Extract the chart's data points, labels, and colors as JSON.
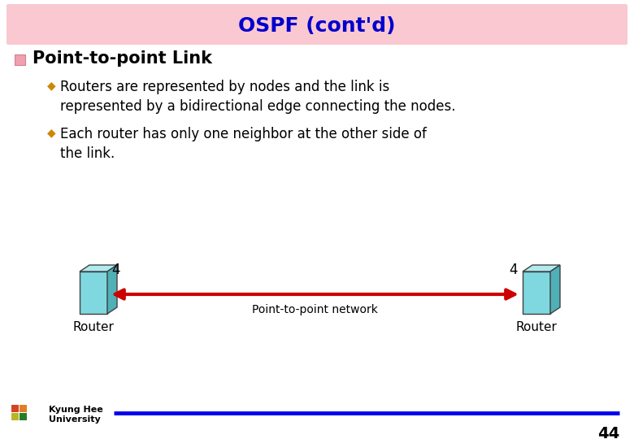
{
  "title": "OSPF (cont'd)",
  "title_color": "#0000CC",
  "title_bg_color": "#F9C8D0",
  "bg_color": "#FFFFFF",
  "bullet_main": "Point-to-point Link",
  "bullet_main_color": "black",
  "bullet_color": "#CC8800",
  "bullets": [
    "Routers are represented by nodes and the link is\nrepresented by a bidirectional edge connecting the nodes.",
    "Each router has only one neighbor at the other side of\nthe link."
  ],
  "diagram_label_center": "Point-to-point network",
  "diagram_label_router": "Router",
  "diagram_cost": "4",
  "arrow_color": "#CC0000",
  "router_front_color": "#7FD8E0",
  "router_top_color": "#B0EAEE",
  "router_side_color": "#50B0B8",
  "router_edge_color": "#404040",
  "footer_line_color": "#0000EE",
  "footer_text": "Kyung Hee\nUniversity",
  "page_number": "44"
}
